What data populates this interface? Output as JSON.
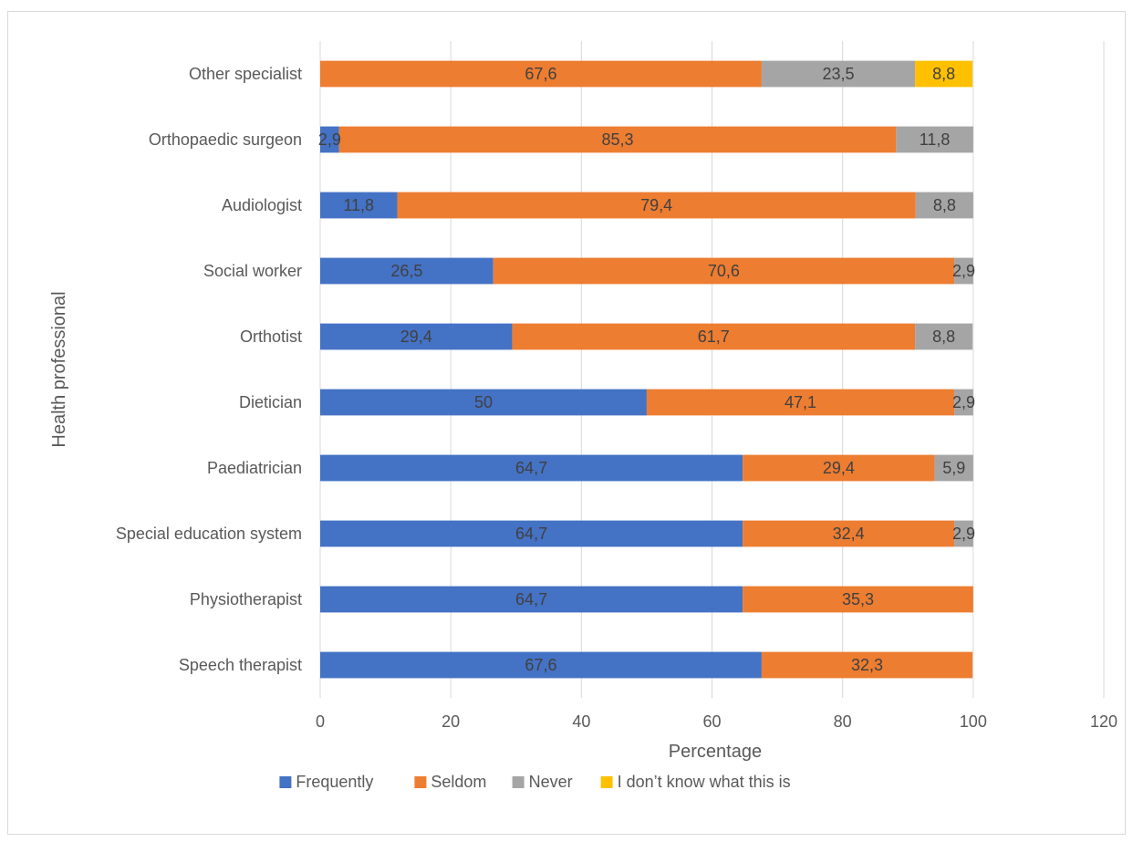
{
  "chart_data": {
    "type": "bar",
    "orientation": "horizontal",
    "stacked": true,
    "categories": [
      "Speech therapist",
      "Physiotherapist",
      "Special education system",
      "Paediatrician",
      "Dietician",
      "Orthotist",
      "Social worker",
      "Audiologist",
      "Orthopaedic surgeon",
      "Other specialist"
    ],
    "series": [
      {
        "name": "Frequently",
        "color": "#4472C4",
        "values": [
          67.6,
          64.7,
          64.7,
          64.7,
          50,
          29.4,
          26.5,
          11.8,
          2.9,
          null
        ],
        "labels": [
          "67,6",
          "64,7",
          "64,7",
          "64,7",
          "50",
          "29,4",
          "26,5",
          "11,8",
          "2,9",
          ""
        ]
      },
      {
        "name": "Seldom",
        "color": "#ED7D31",
        "values": [
          32.3,
          35.3,
          32.4,
          29.4,
          47.1,
          61.7,
          70.6,
          79.4,
          85.3,
          67.6
        ],
        "labels": [
          "32,3",
          "35,3",
          "32,4",
          "29,4",
          "47,1",
          "61,7",
          "70,6",
          "79,4",
          "85,3",
          "67,6"
        ]
      },
      {
        "name": "Never",
        "color": "#A5A5A5",
        "values": [
          null,
          null,
          2.9,
          5.9,
          2.9,
          8.8,
          2.9,
          8.8,
          11.8,
          23.5
        ],
        "labels": [
          "",
          "",
          "2,9",
          "5,9",
          "2,9",
          "8,8",
          "2,9",
          "8,8",
          "11,8",
          "23,5"
        ]
      },
      {
        "name": "I don’t know what this is",
        "color": "#FFC000",
        "values": [
          null,
          null,
          null,
          null,
          null,
          null,
          null,
          null,
          null,
          8.8
        ],
        "labels": [
          "",
          "",
          "",
          "",
          "",
          "",
          "",
          "",
          "",
          "8,8"
        ]
      }
    ],
    "xlabel": "Percentage",
    "ylabel": "Health professional",
    "xlim": [
      0,
      120
    ],
    "xticks": [
      0,
      20,
      40,
      60,
      80,
      100,
      120
    ],
    "grid": "vertical",
    "legend": "bottom"
  }
}
